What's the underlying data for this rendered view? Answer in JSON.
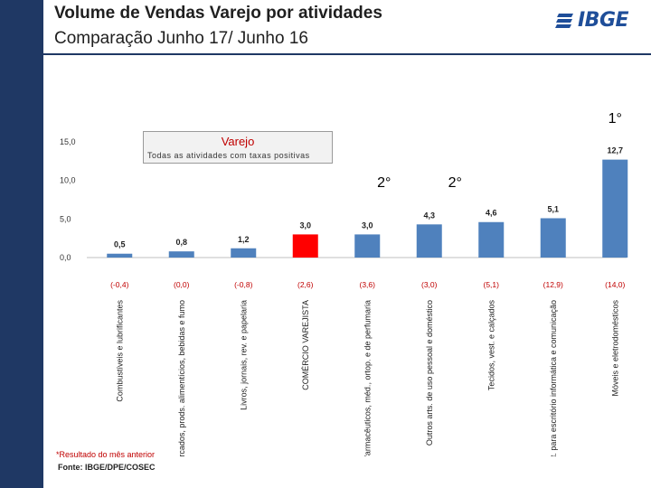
{
  "header": {
    "title": "Volume de Vendas Varejo por atividades",
    "subtitle": "Comparação Junho 17/ Junho 16",
    "logo_text": "IBGE",
    "logo_icon": "ibge-logo-icon"
  },
  "legend": {
    "title": "Varejo",
    "subtitle": "Todas as atividades com taxas positivas"
  },
  "chart_data": {
    "type": "bar",
    "title": "Volume de Vendas Varejo por atividades",
    "ylim": [
      0,
      15
    ],
    "yticks": [
      "15,0",
      "10,0",
      "5,0",
      "0,0"
    ],
    "ytick_values": [
      15,
      10,
      5,
      0
    ],
    "categories": [
      "Combustíveis e lubrificantes",
      "Hiper, supermercados, prods. alimentícios, bebidas e fumo",
      "Livros, jornais, rev. e papelaria",
      "COMÉRCIO VAREJISTA",
      "Art.farmacêuticos, méd., ortop. e de perfumaria",
      "Outros arts. de uso pessoal e doméstico",
      "Tecidos, vest. e calçados",
      "Equip. e mat. para escritório informática e comunicação",
      "Móveis e eletrodomésticos"
    ],
    "values": [
      0.5,
      0.8,
      1.2,
      3.0,
      3.0,
      4.3,
      4.6,
      5.1,
      12.7
    ],
    "value_labels": [
      "0,5",
      "0,8",
      "1,2",
      "3,0",
      "3,0",
      "4,3",
      "4,6",
      "5,1",
      "12,7"
    ],
    "previous_month_labels": [
      "(-0,4)",
      "(0,0)",
      "(-0,8)",
      "(2,6)",
      "(3,6)",
      "(3,0)",
      "(5,1)",
      "(12,9)",
      "(14,0)"
    ],
    "highlight_index": 3,
    "colors": {
      "bar": "#4f81bd",
      "highlight": "#ff0000",
      "paren": "#c00000"
    },
    "rank_annotations": [
      "1°",
      "2°",
      "2°"
    ],
    "grid": false
  },
  "footnote": "*Resultado do mês anterior",
  "source": "Fonte: IBGE/DPE/COSEC"
}
